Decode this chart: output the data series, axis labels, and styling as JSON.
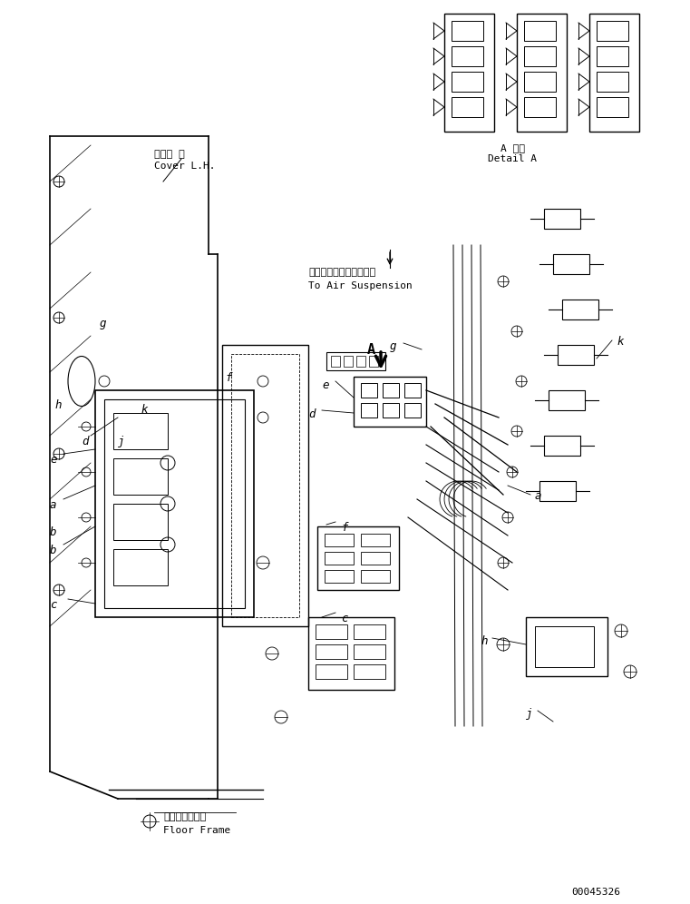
{
  "title": "",
  "background_color": "#ffffff",
  "line_color": "#000000",
  "figure_width": 7.61,
  "figure_height": 9.96,
  "dpi": 100,
  "part_number": "00045326",
  "labels": {
    "cover_lh_jp": "カバー 左",
    "cover_lh_en": "Cover L.H.",
    "air_suspension_jp": "エアーサスペンションへ",
    "air_suspension_en": "To Air Suspension",
    "detail_a_jp": "A 詳細",
    "detail_a_en": "Detail A",
    "floor_frame_jp": "フロアフレーム",
    "floor_frame_en": "Floor Frame"
  },
  "part_labels": [
    "a",
    "b",
    "c",
    "d",
    "e",
    "f",
    "g",
    "h",
    "j",
    "k"
  ],
  "arrow_label_A": "A"
}
